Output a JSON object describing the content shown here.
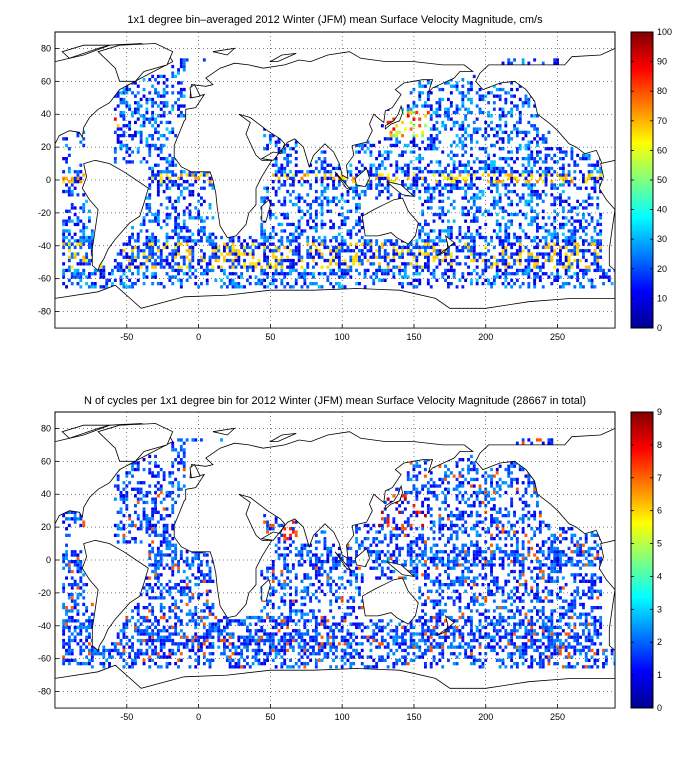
{
  "panels": [
    {
      "title": "1x1 degree bin–averaged 2012 Winter (JFM) mean Surface Velocity Magnitude, cm/s",
      "x_ticks": [
        "-50",
        "0",
        "50",
        "100",
        "150",
        "200",
        "250"
      ],
      "y_ticks": [
        "80",
        "60",
        "40",
        "20",
        "0",
        "-20",
        "-40",
        "-60",
        "-80"
      ],
      "colorbar_ticks": [
        "100",
        "90",
        "80",
        "70",
        "60",
        "50",
        "40",
        "30",
        "20",
        "10",
        "0"
      ],
      "colorbar_range": [
        0,
        100
      ]
    },
    {
      "title": "N of cycles per 1x1 degree bin for 2012 Winter (JFM) mean Surface Velocity Magnitude (28667 in total)",
      "x_ticks": [
        "-50",
        "0",
        "50",
        "100",
        "150",
        "200",
        "250"
      ],
      "y_ticks": [
        "80",
        "60",
        "40",
        "20",
        "0",
        "-20",
        "-40",
        "-60",
        "-80"
      ],
      "colorbar_ticks": [
        "9",
        "8",
        "7",
        "6",
        "5",
        "4",
        "3",
        "2",
        "1",
        "0"
      ],
      "colorbar_range": [
        0,
        9
      ]
    }
  ],
  "map": {
    "lon_range": [
      -100,
      290
    ],
    "lat_range": [
      -90,
      90
    ],
    "colormap": "jet",
    "grid": "dotted"
  }
}
